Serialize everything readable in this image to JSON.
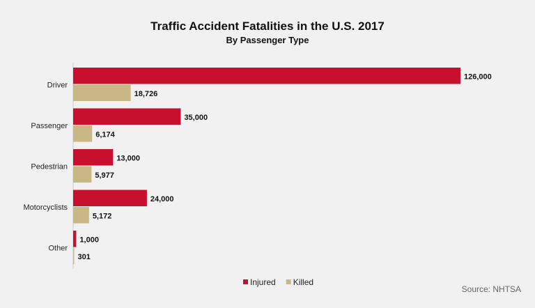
{
  "chart_data": {
    "type": "bar",
    "orientation": "horizontal",
    "title": "Traffic Accident Fatalities in the U.S. 2017",
    "subtitle": "By Passenger Type",
    "categories": [
      "Driver",
      "Passenger",
      "Pedestrian",
      "Motorcyclists",
      "Other"
    ],
    "series": [
      {
        "name": "Injured",
        "color": "#c8102e",
        "values": [
          126000,
          35000,
          13000,
          24000,
          1000
        ],
        "labels": [
          "126,000",
          "35,000",
          "13,000",
          "24,000",
          "1,000"
        ]
      },
      {
        "name": "Killed",
        "color": "#c9b884",
        "values": [
          18726,
          6174,
          5977,
          5172,
          301
        ],
        "labels": [
          "18,726",
          "6,174",
          "5,977",
          "5,172",
          "301"
        ]
      }
    ],
    "legend": "bottom",
    "grid": false,
    "source": "Source: NHTSA"
  }
}
